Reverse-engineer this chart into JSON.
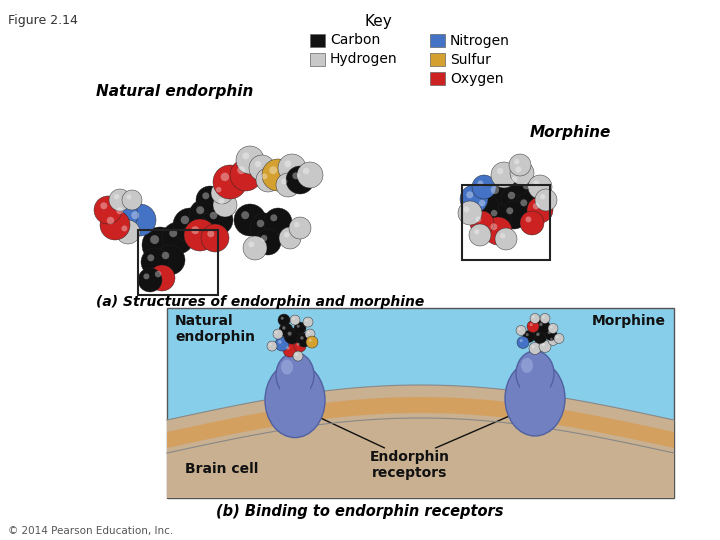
{
  "figure_label": "Figure 2.14",
  "key_title": "Key",
  "key_items": [
    {
      "label": "Carbon",
      "color": "#111111"
    },
    {
      "label": "Hydrogen",
      "color": "#c8c8c8"
    },
    {
      "label": "Nitrogen",
      "color": "#4472c4"
    },
    {
      "label": "Sulfur",
      "color": "#d4a030"
    },
    {
      "label": "Oxygen",
      "color": "#cc2222"
    }
  ],
  "label_natural": "Natural endorphin",
  "label_morphine_top": "Morphine",
  "caption_a": "(a) Structures of endorphin and morphine",
  "caption_b": "(b) Binding to endorphin receptors",
  "label_natural_b": "Natural\nendorphin",
  "label_morphine_b": "Morphine",
  "label_brain": "Brain cell",
  "label_receptor": "Endorphin\nreceptors",
  "copyright": "© 2014 Pearson Education, Inc.",
  "bg_color": "#ffffff",
  "panel_b_bg": "#87ceeb",
  "panel_b_border": "#555555",
  "mem_outer_color": "#c8b090",
  "mem_inner_color": "#d4a060",
  "mem_stripe_color": "#b89050",
  "receptor_color": "#7080c0",
  "receptor_edge": "#5060a0"
}
